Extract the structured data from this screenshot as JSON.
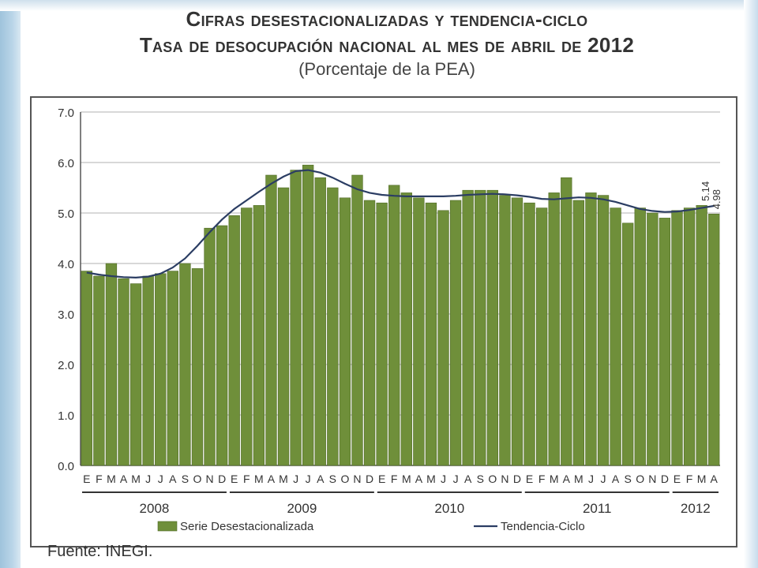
{
  "title_line1": "Cifras desestacionalizadas y tendencia-ciclo",
  "title_line2": "Tasa de desocupación nacional al mes de abril de 2012",
  "subtitle": "(Porcentaje de la PEA)",
  "source": "Fuente: INEGI.",
  "colors": {
    "bar": "#6f8f3a",
    "bar_edge": "#4f6a25",
    "line": "#2b3d63"
  },
  "chart_data": {
    "type": "bar",
    "title": "Tasa de desocupación nacional al mes de abril de 2012",
    "subtitle": "(Porcentaje de la PEA)",
    "ylim": [
      0,
      7
    ],
    "yticks": [
      "0.0",
      "1.0",
      "2.0",
      "3.0",
      "4.0",
      "5.0",
      "6.0",
      "7.0"
    ],
    "grid": true,
    "legend_position": "bottom",
    "categories": [
      "E",
      "F",
      "M",
      "A",
      "M",
      "J",
      "J",
      "A",
      "S",
      "O",
      "N",
      "D",
      "E",
      "F",
      "M",
      "A",
      "M",
      "J",
      "J",
      "A",
      "S",
      "O",
      "N",
      "D",
      "E",
      "F",
      "M",
      "A",
      "M",
      "J",
      "J",
      "A",
      "S",
      "O",
      "N",
      "D",
      "E",
      "F",
      "M",
      "A",
      "M",
      "J",
      "J",
      "A",
      "S",
      "O",
      "N",
      "D",
      "E",
      "F",
      "M",
      "A"
    ],
    "years": [
      {
        "label": "2008",
        "count": 12
      },
      {
        "label": "2009",
        "count": 12
      },
      {
        "label": "2010",
        "count": 12
      },
      {
        "label": "2011",
        "count": 12
      },
      {
        "label": "2012",
        "count": 4
      }
    ],
    "series": [
      {
        "name": "Serie Desestacionalizada",
        "kind": "bar",
        "values": [
          3.85,
          3.75,
          4.0,
          3.7,
          3.6,
          3.75,
          3.8,
          3.85,
          4.0,
          3.9,
          4.7,
          4.75,
          4.95,
          5.1,
          5.15,
          5.75,
          5.5,
          5.85,
          5.95,
          5.7,
          5.5,
          5.3,
          5.75,
          5.25,
          5.2,
          5.55,
          5.4,
          5.3,
          5.2,
          5.05,
          5.25,
          5.45,
          5.45,
          5.45,
          5.35,
          5.3,
          5.2,
          5.1,
          5.4,
          5.7,
          5.25,
          5.4,
          5.35,
          5.1,
          4.8,
          5.1,
          5.0,
          4.9,
          5.05,
          5.1,
          5.15,
          4.98
        ]
      },
      {
        "name": "Tendencia-Ciclo",
        "kind": "line",
        "values": [
          3.82,
          3.78,
          3.75,
          3.73,
          3.72,
          3.74,
          3.8,
          3.92,
          4.1,
          4.35,
          4.62,
          4.87,
          5.08,
          5.25,
          5.42,
          5.58,
          5.72,
          5.83,
          5.85,
          5.8,
          5.7,
          5.58,
          5.47,
          5.4,
          5.36,
          5.34,
          5.33,
          5.33,
          5.33,
          5.33,
          5.34,
          5.36,
          5.37,
          5.38,
          5.37,
          5.35,
          5.32,
          5.28,
          5.27,
          5.29,
          5.31,
          5.3,
          5.27,
          5.22,
          5.15,
          5.08,
          5.04,
          5.02,
          5.03,
          5.06,
          5.1,
          5.14
        ]
      }
    ],
    "annotations": [
      "5.14",
      "4.98"
    ]
  }
}
